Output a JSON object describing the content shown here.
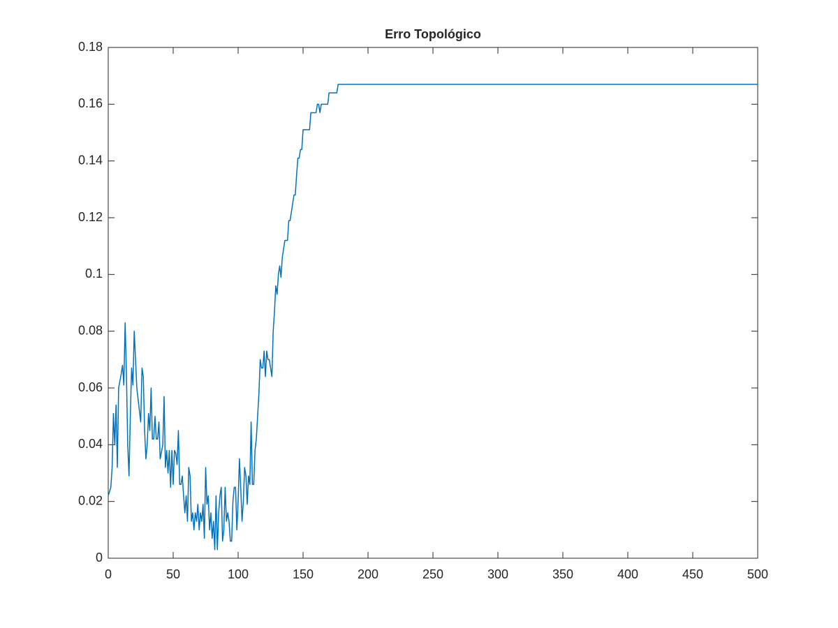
{
  "chart_data": {
    "type": "line",
    "title": "Erro Topológico",
    "x": [
      0,
      2,
      3,
      4,
      5,
      6,
      7,
      8,
      10,
      11,
      12,
      13,
      14,
      15,
      16,
      17,
      18,
      19,
      20,
      21,
      22,
      24,
      25,
      26,
      27,
      28,
      29,
      30,
      31,
      32,
      33,
      34,
      35,
      36,
      37,
      38,
      39,
      40,
      42,
      43,
      44,
      45,
      46,
      47,
      48,
      49,
      50,
      51,
      52,
      53,
      54,
      55,
      56,
      57,
      58,
      59,
      60,
      61,
      62,
      63,
      64,
      65,
      66,
      67,
      68,
      69,
      70,
      71,
      72,
      73,
      74,
      75,
      76,
      77,
      78,
      79,
      80,
      81,
      82,
      83,
      84,
      85,
      86,
      87,
      88,
      89,
      90,
      91,
      92,
      93,
      94,
      95,
      96,
      97,
      98,
      99,
      100,
      101,
      102,
      103,
      104,
      105,
      106,
      107,
      108,
      109,
      110,
      111,
      112,
      113,
      114,
      115,
      116,
      117,
      118,
      119,
      120,
      121,
      122,
      123,
      124,
      125,
      126,
      127,
      128,
      129,
      130,
      131,
      132,
      133,
      134,
      135,
      136,
      137,
      138,
      139,
      140,
      141,
      142,
      143,
      144,
      145,
      146,
      147,
      148,
      149,
      150,
      155,
      156,
      160,
      161,
      162,
      163,
      164,
      169,
      170,
      176,
      177,
      500
    ],
    "series": [
      {
        "color": "#0072bd",
        "values": [
          0.022,
          0.025,
          0.032,
          0.051,
          0.04,
          0.054,
          0.032,
          0.06,
          0.065,
          0.068,
          0.061,
          0.083,
          0.065,
          0.04,
          0.029,
          0.05,
          0.067,
          0.061,
          0.08,
          0.07,
          0.06,
          0.052,
          0.048,
          0.067,
          0.064,
          0.045,
          0.035,
          0.04,
          0.051,
          0.045,
          0.06,
          0.042,
          0.042,
          0.05,
          0.042,
          0.042,
          0.048,
          0.035,
          0.04,
          0.057,
          0.032,
          0.038,
          0.03,
          0.038,
          0.025,
          0.038,
          0.026,
          0.038,
          0.037,
          0.033,
          0.045,
          0.026,
          0.026,
          0.029,
          0.022,
          0.016,
          0.022,
          0.013,
          0.032,
          0.029,
          0.013,
          0.016,
          0.01,
          0.016,
          0.013,
          0.019,
          0.01,
          0.016,
          0.013,
          0.019,
          0.007,
          0.032,
          0.019,
          0.022,
          0.01,
          0.016,
          0.007,
          0.013,
          0.003,
          0.022,
          0.003,
          0.016,
          0.022,
          0.025,
          0.006,
          0.01,
          0.025,
          0.013,
          0.016,
          0.013,
          0.006,
          0.006,
          0.02,
          0.025,
          0.025,
          0.01,
          0.02,
          0.035,
          0.025,
          0.013,
          0.02,
          0.032,
          0.029,
          0.019,
          0.029,
          0.026,
          0.048,
          0.026,
          0.026,
          0.038,
          0.042,
          0.05,
          0.058,
          0.07,
          0.067,
          0.067,
          0.073,
          0.064,
          0.073,
          0.07,
          0.07,
          0.067,
          0.064,
          0.08,
          0.087,
          0.096,
          0.093,
          0.1,
          0.103,
          0.099,
          0.106,
          0.109,
          0.112,
          0.112,
          0.112,
          0.119,
          0.119,
          0.122,
          0.125,
          0.128,
          0.128,
          0.135,
          0.141,
          0.141,
          0.144,
          0.144,
          0.151,
          0.151,
          0.157,
          0.157,
          0.16,
          0.16,
          0.157,
          0.16,
          0.16,
          0.164,
          0.164,
          0.167,
          0.167
        ]
      }
    ],
    "xlim": [
      0,
      500
    ],
    "xticks": [
      0,
      50,
      100,
      150,
      200,
      250,
      300,
      350,
      400,
      450,
      500
    ],
    "ylim": [
      0,
      0.18
    ],
    "yticks": [
      0,
      0.02,
      0.04,
      0.06,
      0.08,
      0.1,
      0.12,
      0.14,
      0.16,
      0.18
    ]
  }
}
